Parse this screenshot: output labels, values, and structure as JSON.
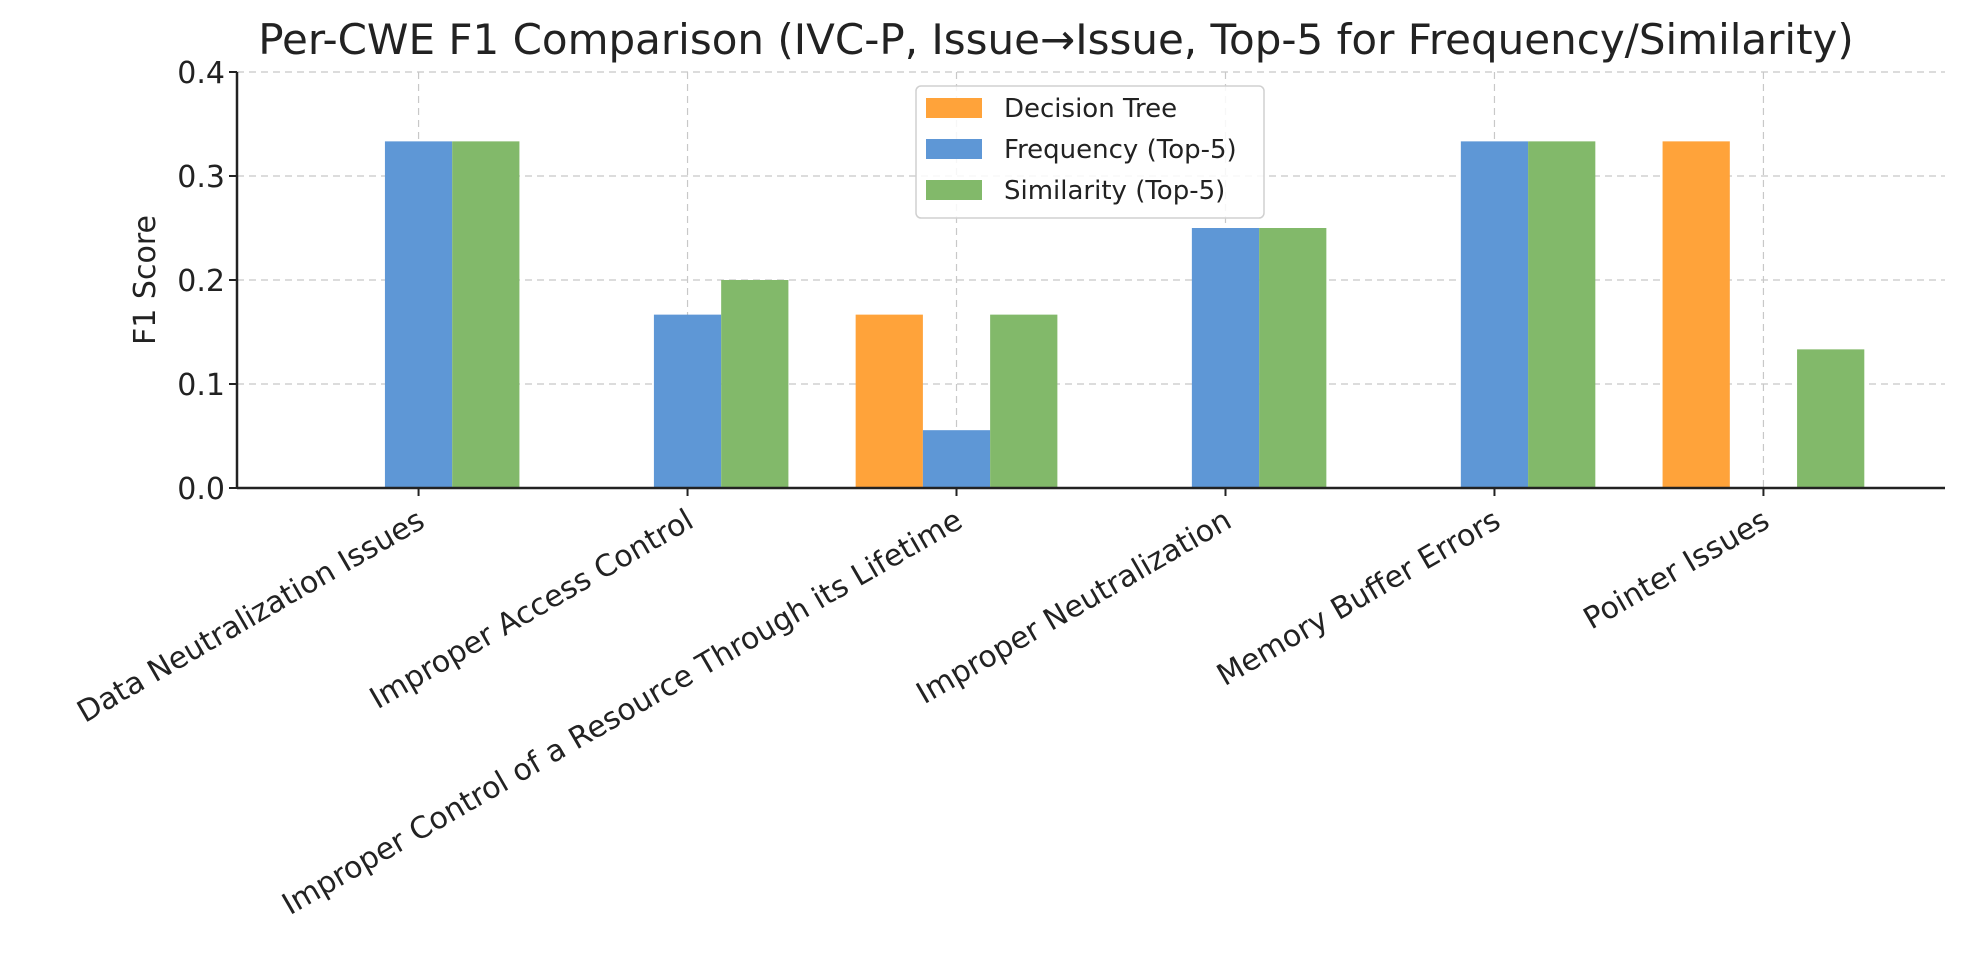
{
  "chart_data": {
    "type": "bar",
    "title": "Per-CWE F1 Comparison (IVC-P, Issue→Issue, Top-5 for Frequency/Similarity)",
    "xlabel": "",
    "ylabel": "F1 Score",
    "ylim": [
      0,
      0.4
    ],
    "yticks": [
      "0.0",
      "0.1",
      "0.2",
      "0.3",
      "0.4"
    ],
    "grid": true,
    "legend_position": "top-center",
    "categories": [
      "Data Neutralization Issues",
      "Improper Access Control",
      "Improper Control of a Resource Through its Lifetime",
      "Improper Neutralization",
      "Memory Buffer Errors",
      "Pointer Issues"
    ],
    "series": [
      {
        "name": "Decision Tree",
        "color": "#FFA33A",
        "values": [
          0,
          0,
          0.1667,
          0,
          0,
          0.3333
        ]
      },
      {
        "name": "Frequency (Top-5)",
        "color": "#5E97D6",
        "values": [
          0.3333,
          0.1667,
          0.0556,
          0.25,
          0.3333,
          0
        ]
      },
      {
        "name": "Similarity (Top-5)",
        "color": "#82B96A",
        "values": [
          0.3333,
          0.2,
          0.1667,
          0.25,
          0.3333,
          0.1333
        ]
      }
    ]
  }
}
